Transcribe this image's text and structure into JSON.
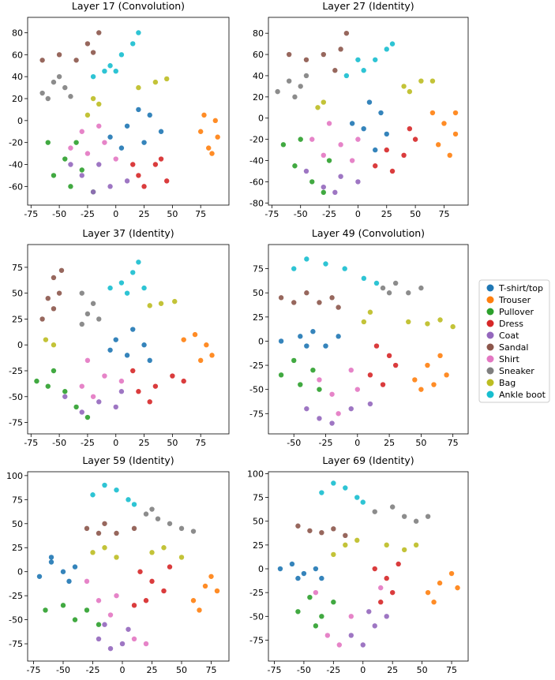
{
  "chart_data": [
    {
      "type": "scatter",
      "title": "Layer 17 (Convolution)",
      "xlim": [
        -78,
        100
      ],
      "ylim": [
        -77,
        94
      ],
      "xticks": [
        -75,
        -50,
        -25,
        0,
        25,
        50,
        75
      ],
      "yticks": [
        -60,
        -40,
        -20,
        0,
        20,
        40,
        60,
        80
      ],
      "series": [
        {
          "x": [
            20,
            30,
            10,
            40,
            25,
            5,
            -5
          ],
          "y": [
            10,
            5,
            -5,
            -10,
            -20,
            -25,
            -15
          ]
        },
        {
          "x": [
            78,
            88,
            75,
            90,
            82,
            85
          ],
          "y": [
            5,
            0,
            -10,
            -15,
            -25,
            -30
          ]
        },
        {
          "x": [
            -60,
            -45,
            -55,
            -30,
            -40,
            -20,
            -35
          ],
          "y": [
            -20,
            -35,
            -50,
            -45,
            -60,
            -65,
            -20
          ]
        },
        {
          "x": [
            20,
            35,
            45,
            25,
            40,
            15
          ],
          "y": [
            -50,
            -40,
            -55,
            -60,
            -35,
            -40
          ]
        },
        {
          "x": [
            -30,
            -15,
            -5,
            10,
            -20,
            -40
          ],
          "y": [
            -50,
            -40,
            -60,
            -55,
            -65,
            -40
          ]
        },
        {
          "x": [
            -65,
            -50,
            -35,
            -25,
            -15,
            -20
          ],
          "y": [
            55,
            60,
            55,
            70,
            80,
            62
          ]
        },
        {
          "x": [
            -40,
            -25,
            -10,
            -30,
            0,
            -15
          ],
          "y": [
            -25,
            -30,
            -20,
            -10,
            -35,
            -5
          ]
        },
        {
          "x": [
            -65,
            -55,
            -45,
            -60,
            -40,
            -50
          ],
          "y": [
            25,
            35,
            30,
            20,
            22,
            40
          ]
        },
        {
          "x": [
            -25,
            -15,
            -20,
            20,
            35,
            45
          ],
          "y": [
            5,
            15,
            20,
            30,
            35,
            38
          ]
        },
        {
          "x": [
            -20,
            -5,
            5,
            15,
            20,
            0,
            -10
          ],
          "y": [
            40,
            50,
            60,
            70,
            80,
            45,
            45
          ]
        }
      ]
    },
    {
      "type": "scatter",
      "title": "Layer 27 (Identity)",
      "xlim": [
        -78,
        96
      ],
      "ylim": [
        -82,
        95
      ],
      "xticks": [
        -75,
        -50,
        -25,
        0,
        25,
        50,
        75
      ],
      "yticks": [
        -80,
        -60,
        -40,
        -20,
        0,
        20,
        40,
        60,
        80
      ],
      "series": [
        {
          "x": [
            10,
            20,
            5,
            25,
            15,
            -5
          ],
          "y": [
            15,
            5,
            -10,
            -15,
            -30,
            -5
          ]
        },
        {
          "x": [
            65,
            75,
            85,
            70,
            80,
            85
          ],
          "y": [
            5,
            -5,
            -15,
            -25,
            -35,
            5
          ]
        },
        {
          "x": [
            -65,
            -50,
            -55,
            -40,
            -30,
            -25
          ],
          "y": [
            -25,
            -20,
            -45,
            -60,
            -70,
            -40
          ]
        },
        {
          "x": [
            15,
            25,
            40,
            50,
            30,
            45
          ],
          "y": [
            -45,
            -30,
            -35,
            -20,
            -50,
            -10
          ]
        },
        {
          "x": [
            -45,
            -30,
            -15,
            0,
            -20
          ],
          "y": [
            -50,
            -65,
            -55,
            -60,
            -70
          ]
        },
        {
          "x": [
            -60,
            -45,
            -30,
            -15,
            -10,
            -20
          ],
          "y": [
            60,
            55,
            60,
            65,
            80,
            45
          ]
        },
        {
          "x": [
            -40,
            -30,
            -15,
            -5,
            -25,
            0
          ],
          "y": [
            -20,
            -35,
            -25,
            -40,
            -5,
            -20
          ]
        },
        {
          "x": [
            -70,
            -60,
            -50,
            -55,
            -45
          ],
          "y": [
            25,
            35,
            30,
            20,
            40
          ]
        },
        {
          "x": [
            -35,
            -30,
            40,
            55,
            65,
            45
          ],
          "y": [
            10,
            15,
            30,
            35,
            35,
            25
          ]
        },
        {
          "x": [
            -10,
            5,
            15,
            25,
            30,
            0
          ],
          "y": [
            40,
            45,
            55,
            65,
            70,
            55
          ]
        }
      ]
    },
    {
      "type": "scatter",
      "title": "Layer 37 (Identity)",
      "xlim": [
        -78,
        100
      ],
      "ylim": [
        -86,
        97
      ],
      "xticks": [
        -75,
        -50,
        -25,
        0,
        25,
        50,
        75
      ],
      "yticks": [
        -75,
        -50,
        -25,
        0,
        25,
        50,
        75
      ],
      "series": [
        {
          "x": [
            0,
            15,
            25,
            10,
            30,
            -5
          ],
          "y": [
            5,
            15,
            0,
            -10,
            -15,
            -5
          ]
        },
        {
          "x": [
            60,
            70,
            80,
            85,
            75
          ],
          "y": [
            5,
            10,
            0,
            -10,
            -15
          ]
        },
        {
          "x": [
            -70,
            -55,
            -45,
            -35,
            -25,
            -60
          ],
          "y": [
            -35,
            -25,
            -45,
            -60,
            -70,
            -40
          ]
        },
        {
          "x": [
            20,
            35,
            50,
            60,
            30,
            15
          ],
          "y": [
            -45,
            -40,
            -30,
            -35,
            -55,
            -25
          ]
        },
        {
          "x": [
            -45,
            -30,
            -15,
            0,
            5
          ],
          "y": [
            -50,
            -65,
            -55,
            -60,
            -45
          ]
        },
        {
          "x": [
            -65,
            -55,
            -50,
            -55,
            -48,
            -60
          ],
          "y": [
            25,
            35,
            50,
            65,
            72,
            45
          ]
        },
        {
          "x": [
            -30,
            -20,
            -10,
            -25,
            5
          ],
          "y": [
            -40,
            -50,
            -30,
            -15,
            -35
          ]
        },
        {
          "x": [
            -30,
            -25,
            -20,
            -30,
            -15
          ],
          "y": [
            20,
            30,
            40,
            50,
            25
          ]
        },
        {
          "x": [
            -62,
            -55,
            30,
            40,
            52
          ],
          "y": [
            5,
            0,
            38,
            40,
            42
          ]
        },
        {
          "x": [
            -5,
            5,
            15,
            20,
            25,
            10
          ],
          "y": [
            55,
            60,
            70,
            80,
            55,
            50
          ]
        }
      ]
    },
    {
      "type": "scatter",
      "title": "Layer 49 (Convolution)",
      "xlim": [
        -70,
        87
      ],
      "ylim": [
        -96,
        100
      ],
      "xticks": [
        -50,
        -25,
        0,
        25,
        50,
        75
      ],
      "yticks": [
        -75,
        -50,
        -25,
        0,
        25,
        50,
        75
      ],
      "series": [
        {
          "x": [
            -60,
            -45,
            -35,
            -25,
            -15,
            -40
          ],
          "y": [
            0,
            5,
            10,
            -5,
            5,
            -5
          ]
        },
        {
          "x": [
            45,
            55,
            65,
            70,
            50,
            60
          ],
          "y": [
            -40,
            -25,
            -15,
            -35,
            -50,
            -45
          ]
        },
        {
          "x": [
            -60,
            -50,
            -45,
            -35,
            -30
          ],
          "y": [
            -35,
            -20,
            -45,
            -30,
            -50
          ]
        },
        {
          "x": [
            15,
            25,
            30,
            10,
            20
          ],
          "y": [
            -5,
            -15,
            -25,
            -35,
            -45
          ]
        },
        {
          "x": [
            -40,
            -30,
            -20,
            -5,
            10
          ],
          "y": [
            -70,
            -80,
            -85,
            -70,
            -65
          ]
        },
        {
          "x": [
            -60,
            -50,
            -40,
            -30,
            -20,
            -15
          ],
          "y": [
            45,
            40,
            50,
            40,
            45,
            35
          ]
        },
        {
          "x": [
            -30,
            -20,
            -15,
            -5,
            0
          ],
          "y": [
            -40,
            -55,
            -75,
            -30,
            -50
          ]
        },
        {
          "x": [
            20,
            30,
            40,
            50,
            25
          ],
          "y": [
            55,
            60,
            50,
            55,
            50
          ]
        },
        {
          "x": [
            5,
            10,
            40,
            55,
            65,
            75
          ],
          "y": [
            20,
            30,
            20,
            18,
            22,
            15
          ]
        },
        {
          "x": [
            -50,
            -40,
            -25,
            -10,
            5,
            15
          ],
          "y": [
            75,
            85,
            80,
            75,
            65,
            60
          ]
        }
      ]
    },
    {
      "type": "scatter",
      "title": "Layer 59 (Identity)",
      "xlim": [
        -80,
        90
      ],
      "ylim": [
        -93,
        104
      ],
      "xticks": [
        -75,
        -50,
        -25,
        0,
        25,
        50,
        75
      ],
      "yticks": [
        -75,
        -50,
        -25,
        0,
        25,
        50,
        75,
        100
      ],
      "series": [
        {
          "x": [
            -70,
            -60,
            -50,
            -45,
            -60,
            -40
          ],
          "y": [
            -5,
            10,
            0,
            -10,
            15,
            5
          ]
        },
        {
          "x": [
            60,
            70,
            80,
            65,
            75
          ],
          "y": [
            -30,
            -15,
            -20,
            -40,
            -5
          ]
        },
        {
          "x": [
            -65,
            -50,
            -40,
            -30,
            -20
          ],
          "y": [
            -40,
            -35,
            -50,
            -40,
            -55
          ]
        },
        {
          "x": [
            15,
            25,
            35,
            20,
            40,
            10
          ],
          "y": [
            0,
            -10,
            -20,
            -30,
            5,
            -35
          ]
        },
        {
          "x": [
            -20,
            -10,
            0,
            5,
            -15
          ],
          "y": [
            -70,
            -80,
            -75,
            -60,
            -55
          ]
        },
        {
          "x": [
            -30,
            -15,
            -5,
            10,
            -20
          ],
          "y": [
            45,
            50,
            40,
            45,
            40
          ]
        },
        {
          "x": [
            -30,
            -20,
            -5,
            10,
            20,
            -10
          ],
          "y": [
            -10,
            -30,
            -25,
            -70,
            -75,
            -45
          ]
        },
        {
          "x": [
            20,
            30,
            40,
            50,
            60,
            25
          ],
          "y": [
            60,
            55,
            50,
            45,
            42,
            65
          ]
        },
        {
          "x": [
            -25,
            -15,
            -5,
            25,
            35,
            50
          ],
          "y": [
            20,
            25,
            15,
            20,
            25,
            15
          ]
        },
        {
          "x": [
            -25,
            -15,
            -5,
            5,
            10
          ],
          "y": [
            80,
            90,
            85,
            75,
            70
          ]
        }
      ]
    },
    {
      "type": "scatter",
      "title": "Layer 69 (Identity)",
      "xlim": [
        -80,
        89
      ],
      "ylim": [
        -97,
        102
      ],
      "xticks": [
        -75,
        -50,
        -25,
        0,
        25,
        50,
        75
      ],
      "yticks": [
        -75,
        -50,
        -25,
        0,
        25,
        50,
        75,
        100
      ],
      "series": [
        {
          "x": [
            -70,
            -60,
            -50,
            -40,
            -35,
            -55
          ],
          "y": [
            0,
            5,
            -5,
            0,
            -10,
            -10
          ]
        },
        {
          "x": [
            55,
            65,
            75,
            80,
            60
          ],
          "y": [
            -25,
            -15,
            -5,
            -20,
            -35
          ]
        },
        {
          "x": [
            -55,
            -45,
            -35,
            -25,
            -40
          ],
          "y": [
            -45,
            -30,
            -50,
            -35,
            -60
          ]
        },
        {
          "x": [
            10,
            20,
            25,
            15,
            30
          ],
          "y": [
            0,
            -10,
            -25,
            -35,
            5
          ]
        },
        {
          "x": [
            -10,
            0,
            10,
            20,
            5
          ],
          "y": [
            -70,
            -80,
            -60,
            -50,
            -45
          ]
        },
        {
          "x": [
            -55,
            -45,
            -35,
            -25,
            -15
          ],
          "y": [
            45,
            40,
            38,
            42,
            35
          ]
        },
        {
          "x": [
            -40,
            -30,
            -20,
            -10,
            15
          ],
          "y": [
            -25,
            -70,
            -80,
            -50,
            -20
          ]
        },
        {
          "x": [
            10,
            25,
            35,
            45,
            55
          ],
          "y": [
            60,
            65,
            55,
            50,
            55
          ]
        },
        {
          "x": [
            -25,
            -15,
            -5,
            20,
            35,
            45
          ],
          "y": [
            15,
            25,
            30,
            25,
            20,
            25
          ]
        },
        {
          "x": [
            -35,
            -25,
            -15,
            -5,
            0
          ],
          "y": [
            80,
            90,
            85,
            75,
            70
          ]
        }
      ]
    }
  ],
  "legend": [
    {
      "name": "T-shirt/top",
      "color": "#1f77b4"
    },
    {
      "name": "Trouser",
      "color": "#ff7f0e"
    },
    {
      "name": "Pullover",
      "color": "#2ca02c"
    },
    {
      "name": "Dress",
      "color": "#d62728"
    },
    {
      "name": "Coat",
      "color": "#9467bd"
    },
    {
      "name": "Sandal",
      "color": "#8c564b"
    },
    {
      "name": "Shirt",
      "color": "#e377c2"
    },
    {
      "name": "Sneaker",
      "color": "#7f7f7f"
    },
    {
      "name": "Bag",
      "color": "#bcbd22"
    },
    {
      "name": "Ankle boot",
      "color": "#17becf"
    }
  ]
}
